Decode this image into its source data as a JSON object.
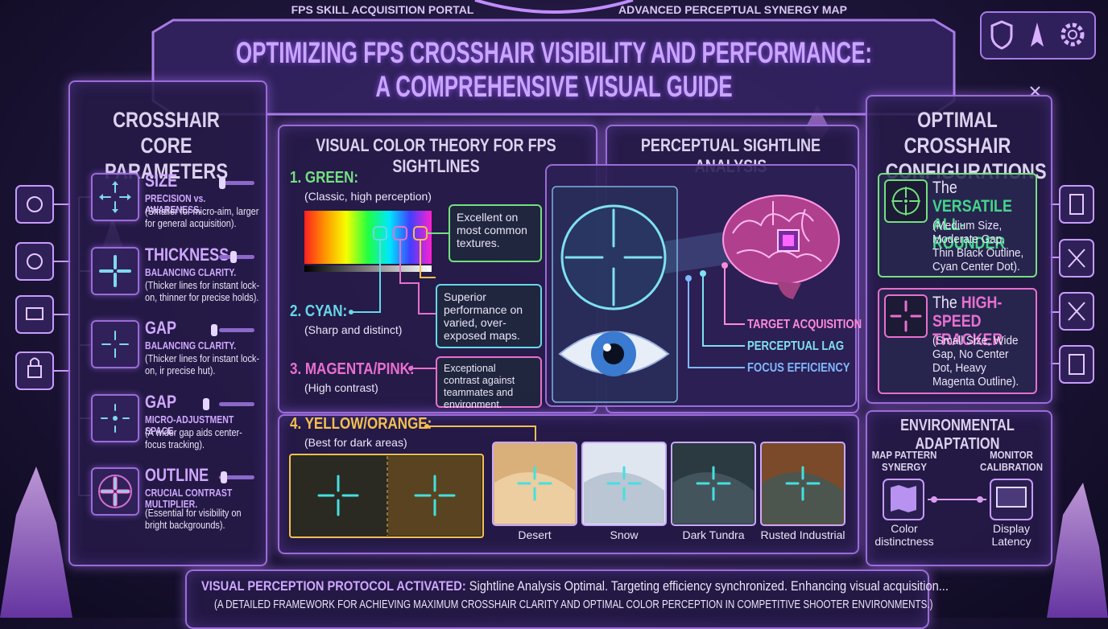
{
  "header": {
    "portal_label": "FPS SKILL ACQUISITION PORTAL",
    "map_label": "ADVANCED PERCEPTUAL SYNERGY MAP",
    "title_line1": "OPTIMIZING FPS CROSSHAIR VISIBILITY AND PERFORMANCE:",
    "title_line2": "A COMPREHENSIVE VISUAL GUIDE"
  },
  "left_panel": {
    "title": "CROSSHAIR CORE PARAMETERS",
    "parameters": [
      {
        "name": "SIZE",
        "subtitle": "PRECISION vs. AWARENESS.",
        "note": "(Smaller for micro-aim, larger for general acquisition)."
      },
      {
        "name": "THICKNESS",
        "subtitle": "BALANCING CLARITY.",
        "note": "(Thicker lines for instant lock-on, thinner for precise holds)."
      },
      {
        "name": "GAP",
        "subtitle": "BALANCING CLARITY.",
        "note": "(Thicker lines for instant lock-on, ir precise hut)."
      },
      {
        "name": "GAP",
        "subtitle": "MICRO-ADJUSTMENT SPACE.",
        "note": "(A wider gap aids center-focus tracking)."
      },
      {
        "name": "OUTLINE",
        "subtitle": "CRUCIAL CONTRAST MULTIPLIER.",
        "note": "(Essential for visibility on bright backgrounds)."
      }
    ]
  },
  "color_theory": {
    "title": "VISUAL COLOR THEORY FOR FPS SIGHTLINES",
    "colors": [
      {
        "label": "1. GREEN:",
        "note": "(Classic, high perception)"
      },
      {
        "label": "2. CYAN:",
        "note": "(Sharp and distinct)"
      },
      {
        "label": "3. MAGENTA/PINK:",
        "note": "(High contrast)"
      },
      {
        "label": "4. YELLOW/ORANGE:",
        "note": "(Best for dark areas)"
      }
    ],
    "callouts": [
      "Excellent on most common textures.",
      "Superior performance on varied, over-exposed maps.",
      "Exceptional contrast against teammates and environment."
    ]
  },
  "environments": [
    "Desert",
    "Snow",
    "Dark Tundra",
    "Rusted Industrial"
  ],
  "sightline": {
    "title": "PERCEPTUAL SIGHTLINE ANALYSIS",
    "metrics": [
      "TARGET ACQUISITION",
      "PERCEPTUAL LAG",
      "FOCUS EFFICIENCY"
    ]
  },
  "configurations": {
    "title": "OPTIMAL CROSSHAIR CONFIGURATIONS",
    "items": [
      {
        "prefix": "The",
        "name": "VERSATILE ALL-ROUNDER",
        "note": "(Medium Size, Moderate Gap, Thin Black Outline, Cyan Center Dot)."
      },
      {
        "prefix": "The",
        "name": "HIGH-SPEED TRACKER",
        "note": "(Small Size, Wide Gap, No Center Dot, Heavy Magenta Outline)."
      }
    ]
  },
  "adaptation": {
    "title": "ENVIRONMENTAL ADAPTATION",
    "items": [
      {
        "label": "MAP PATTERN SYNERGY",
        "caption": "Color distinctness"
      },
      {
        "label": "MONITOR CALIBRATION",
        "caption": "Display Latency"
      }
    ]
  },
  "footer": {
    "status_label": "VISUAL PERCEPTION PROTOCOL ACTIVATED:",
    "status_text": "Sightline Analysis Optimal. Targeting efficiency synchronized. Enhancing visual acquisition...",
    "framework": "(A DETAILED FRAMEWORK FOR ACHIEVING MAXIMUM CROSSHAIR CLARITY AND OPTIMAL COLOR PERCEPTION IN COMPETITIVE SHOOTER ENVIRONMENTS.)"
  }
}
